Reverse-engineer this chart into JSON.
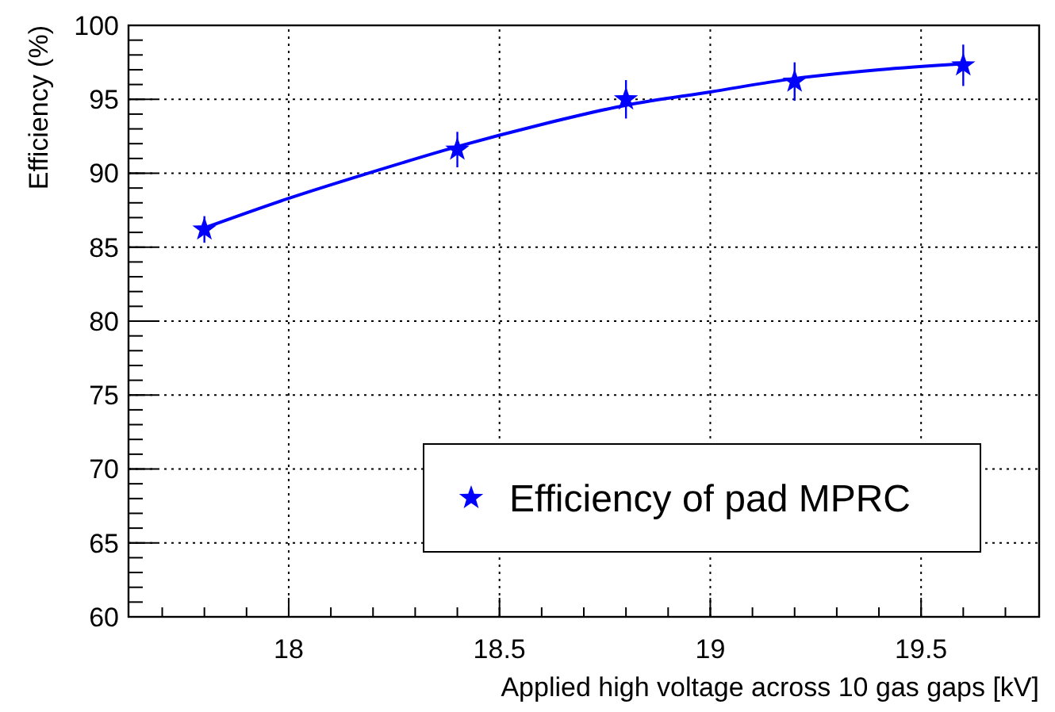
{
  "chart_data": {
    "type": "scatter",
    "xlabel": "Applied high voltage across 10 gas gaps [kV]",
    "ylabel": "Efficiency (%)",
    "x": [
      17.8,
      18.4,
      18.8,
      19.2,
      19.6
    ],
    "series": [
      {
        "name": "Efficiency of pad MPRC",
        "color": "#0000ff",
        "values": [
          86.2,
          91.6,
          95.0,
          96.2,
          97.3
        ],
        "errors": [
          0.9,
          1.2,
          1.3,
          1.3,
          1.4
        ],
        "marker": "star"
      },
      {
        "type": "line",
        "color": "#0000ff",
        "x": [
          17.8,
          18.0,
          18.2,
          18.4,
          18.6,
          18.8,
          19.0,
          19.2,
          19.4,
          19.6
        ],
        "values": [
          86.3,
          88.3,
          90.1,
          91.8,
          93.3,
          94.6,
          95.5,
          96.4,
          97.0,
          97.4
        ],
        "marker": "none"
      }
    ],
    "xlim": [
      17.62,
      19.78
    ],
    "xticks": [
      18,
      18.5,
      19,
      19.5
    ],
    "ylim": [
      60,
      100
    ],
    "yticks": [
      60,
      65,
      70,
      75,
      80,
      85,
      90,
      95,
      100
    ],
    "grid": true,
    "legend": "bottom right",
    "line_style": "solid"
  }
}
